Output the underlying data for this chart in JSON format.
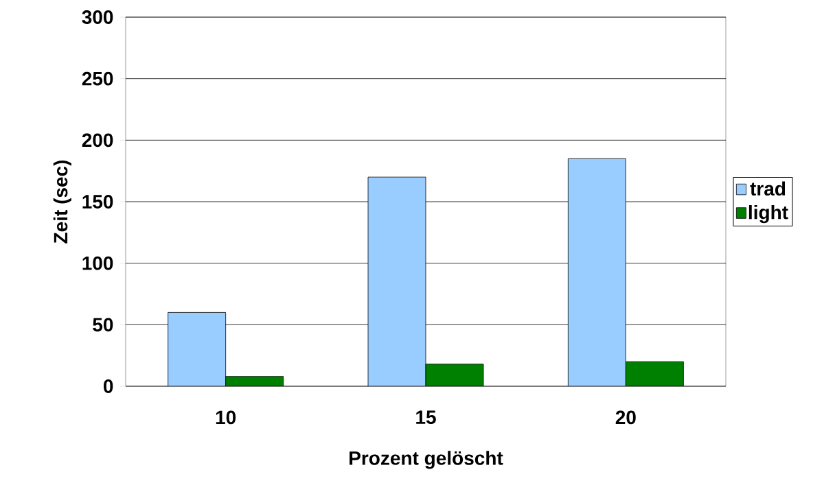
{
  "chart_data": {
    "type": "bar",
    "xlabel": "Prozent gelöscht",
    "ylabel": "Zeit (sec)",
    "categories": [
      "10",
      "15",
      "20"
    ],
    "series": [
      {
        "name": "trad",
        "color": "#99ccff",
        "values": [
          60,
          170,
          185
        ]
      },
      {
        "name": "light",
        "color": "#008000",
        "values": [
          8,
          18,
          20
        ]
      }
    ],
    "ylim": [
      0,
      300
    ],
    "yticks": [
      0,
      50,
      100,
      150,
      200,
      250,
      300
    ],
    "grid": "y",
    "legend": "right"
  }
}
